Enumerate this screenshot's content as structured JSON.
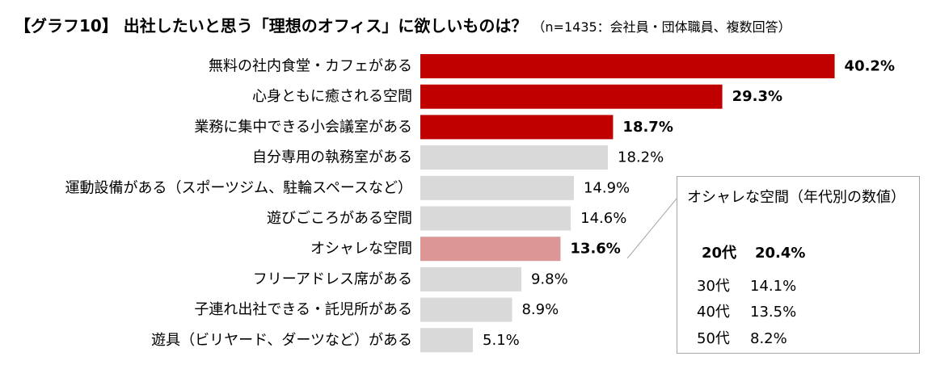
{
  "title": "【グラフ10】 出社したいと思う「理想のオフィス」に欲しいものは？",
  "subtitle": "（n=1435：会社員・団体職員、複数回答）",
  "colors": {
    "highlight": "#c00000",
    "selected": "#dc9696",
    "normal": "#d9d9d9",
    "callout_border": "#a6a6a6"
  },
  "chart_data": {
    "type": "bar",
    "orientation": "horizontal",
    "title": "【グラフ10】 出社したいと思う「理想のオフィス」に欲しいものは？",
    "subtitle": "（n=1435：会社員・団体職員、複数回答）",
    "unit": "%",
    "grid": false,
    "categories": [
      "無料の社内食堂・カフェがある",
      "心身ともに癒される空間",
      "業務に集中できる小会議室がある",
      "自分専用の執務室がある",
      "運動設備がある（スポーツジム、駐輪スペースなど）",
      "遊びごころがある空間",
      "オシャレな空間",
      "フリーアドレス席がある",
      "子連れ出社できる・託児所がある",
      "遊具（ビリヤード、ダーツなど）がある"
    ],
    "values": [
      40.2,
      29.3,
      18.7,
      18.2,
      14.9,
      14.6,
      13.6,
      9.8,
      8.9,
      5.1
    ],
    "labels": [
      "40.2%",
      "29.3%",
      "18.7%",
      "18.2%",
      "14.9%",
      "14.6%",
      "13.6%",
      "9.8%",
      "8.9%",
      "5.1%"
    ],
    "emphasis": [
      "top",
      "top",
      "top",
      "normal",
      "normal",
      "normal",
      "selected",
      "normal",
      "normal",
      "normal"
    ]
  },
  "callout": {
    "title": "オシャレな空間（年代別の数値）",
    "rows": [
      {
        "age": "20代",
        "value": "20.4%",
        "highlight": true
      },
      {
        "age": "30代",
        "value": "14.1%",
        "highlight": false
      },
      {
        "age": "40代",
        "value": "13.5%",
        "highlight": false
      },
      {
        "age": "50代",
        "value": "8.2%",
        "highlight": false
      }
    ]
  }
}
